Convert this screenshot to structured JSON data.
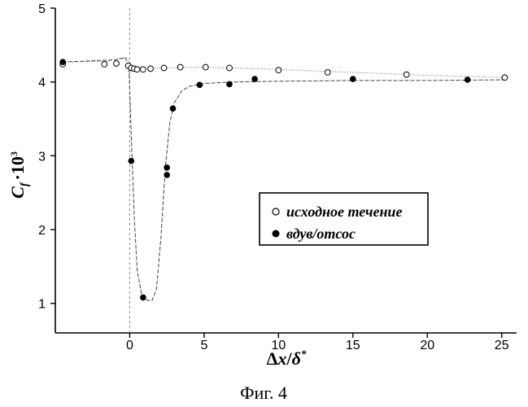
{
  "chart_data": {
    "type": "scatter",
    "xlabel_parts": {
      "delta": "Δ",
      "x": "x",
      "slash": "/",
      "delta_lower": "δ",
      "star": "*"
    },
    "ylabel_parts": {
      "base": "C",
      "sub": "f",
      "dot": "·10",
      "sup": "3"
    },
    "xlim": [
      -5,
      26
    ],
    "ylim": [
      0.6,
      5
    ],
    "x_ticks": [
      0,
      5,
      10,
      15,
      20,
      25
    ],
    "y_ticks": [
      1,
      2,
      3,
      4,
      5
    ],
    "grid": false,
    "legend_position": "center-right",
    "series": [
      {
        "name": "исходное течение",
        "marker": "open-circle",
        "x": [
          -4.5,
          -1.7,
          -0.9,
          -0.1,
          0.1,
          0.3,
          0.5,
          0.9,
          1.4,
          2.3,
          3.4,
          5.1,
          6.7,
          10.0,
          13.3,
          18.6,
          25.2
        ],
        "y": [
          4.24,
          4.24,
          4.25,
          4.22,
          4.19,
          4.18,
          4.17,
          4.17,
          4.18,
          4.19,
          4.2,
          4.2,
          4.19,
          4.16,
          4.13,
          4.1,
          4.06
        ]
      },
      {
        "name": "вдув/отсос",
        "marker": "filled-circle",
        "x": [
          -4.5,
          0.1,
          0.9,
          2.5,
          2.5,
          2.9,
          4.7,
          6.7,
          8.4,
          15.0,
          22.7
        ],
        "y": [
          4.27,
          2.93,
          1.08,
          2.84,
          2.74,
          3.64,
          3.96,
          3.97,
          4.04,
          4.04,
          4.03
        ]
      }
    ],
    "reference_lines": {
      "original_flow_x": [
        -4.5,
        -1.5,
        -0.6,
        -0.2,
        0.0,
        0.2,
        0.6,
        2.0,
        5.0,
        10.0,
        15.0,
        20.0,
        25.2
      ],
      "original_flow_y": [
        4.27,
        4.28,
        4.32,
        4.33,
        4.27,
        4.2,
        4.18,
        4.19,
        4.2,
        4.17,
        4.13,
        4.09,
        4.06
      ],
      "controlled_flow_x": [
        -4.5,
        -1.0,
        -0.3,
        -0.05,
        0.1,
        0.3,
        0.5,
        0.8,
        1.2,
        1.5,
        1.8,
        2.1,
        2.4,
        2.7,
        3.0,
        3.5,
        4.0,
        5.0,
        7.0,
        10.0,
        15.0,
        20.0,
        25.2
      ],
      "controlled_flow_y": [
        4.27,
        4.3,
        4.33,
        4.2,
        3.3,
        2.2,
        1.45,
        1.12,
        1.04,
        1.04,
        1.2,
        1.9,
        2.85,
        3.45,
        3.72,
        3.88,
        3.94,
        3.98,
        4.0,
        4.01,
        4.02,
        4.02,
        4.03
      ]
    },
    "vertical_marker_x": 0
  },
  "caption": "Фиг. 4"
}
